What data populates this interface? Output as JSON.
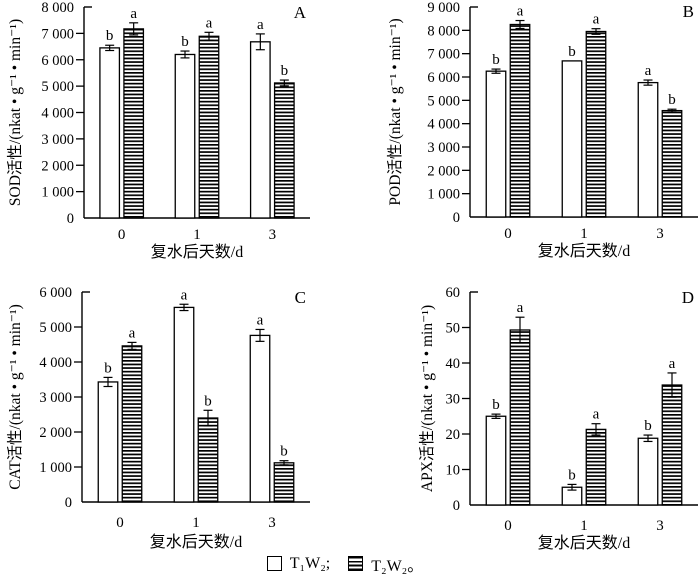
{
  "legend": {
    "series": [
      {
        "label": "T₁W₂;",
        "pattern": "open"
      },
      {
        "label": "T₂W₂。",
        "pattern": "hatched"
      }
    ]
  },
  "chart_data": [
    {
      "type": "bar",
      "panel_label": "A",
      "ylabel": "SOD活性/(nkat • g⁻¹ • min⁻¹)",
      "xlabel": "复水后天数/d",
      "categories": [
        "0",
        "1",
        "3"
      ],
      "ylim": [
        0,
        8000
      ],
      "ytick_step": 1000,
      "grid": false,
      "series": [
        {
          "name": "T₁W₂",
          "pattern": "open",
          "values": [
            6450,
            6200,
            6680
          ],
          "errors": [
            100,
            130,
            300
          ],
          "sig_letters": [
            "b",
            "b",
            "a"
          ]
        },
        {
          "name": "T₂W₂",
          "pattern": "hatched",
          "values": [
            7170,
            6890,
            5120
          ],
          "errors": [
            230,
            150,
            110
          ],
          "sig_letters": [
            "a",
            "a",
            "b"
          ]
        }
      ]
    },
    {
      "type": "bar",
      "panel_label": "B",
      "ylabel": "POD活性/(nkat • g⁻¹ • min⁻¹)",
      "xlabel": "复水后天数/d",
      "categories": [
        "0",
        "1",
        "3"
      ],
      "ylim": [
        0,
        9000
      ],
      "ytick_step": 1000,
      "grid": false,
      "series": [
        {
          "name": "T₁W₂",
          "pattern": "open",
          "values": [
            6250,
            6690,
            5760
          ],
          "errors": [
            90,
            0,
            110
          ],
          "sig_letters": [
            "b",
            "b",
            "a"
          ]
        },
        {
          "name": "T₂W₂",
          "pattern": "hatched",
          "values": [
            8250,
            7950,
            4560
          ],
          "errors": [
            170,
            120,
            60
          ],
          "sig_letters": [
            "a",
            "a",
            "b"
          ]
        }
      ]
    },
    {
      "type": "bar",
      "panel_label": "C",
      "ylabel": "CAT活性/(nkat • g⁻¹ • min⁻¹)",
      "xlabel": "复水后天数/d",
      "categories": [
        "0",
        "1",
        "3"
      ],
      "ylim": [
        0,
        6000
      ],
      "ytick_step": 1000,
      "grid": false,
      "series": [
        {
          "name": "T₁W₂",
          "pattern": "open",
          "values": [
            3430,
            5560,
            4760
          ],
          "errors": [
            130,
            90,
            170
          ],
          "sig_letters": [
            "b",
            "a",
            "a"
          ]
        },
        {
          "name": "T₂W₂",
          "pattern": "hatched",
          "values": [
            4460,
            2400,
            1120
          ],
          "errors": [
            100,
            220,
            60
          ],
          "sig_letters": [
            "a",
            "b",
            "b"
          ]
        }
      ]
    },
    {
      "type": "bar",
      "panel_label": "D",
      "ylabel": "APX活性/(nkat • g⁻¹ • min⁻¹)",
      "xlabel": "复水后天数/d",
      "categories": [
        "0",
        "1",
        "3"
      ],
      "ylim": [
        0,
        60
      ],
      "ytick_step": 10,
      "grid": false,
      "series": [
        {
          "name": "T₁W₂",
          "pattern": "open",
          "values": [
            25,
            5,
            18.8
          ],
          "errors": [
            0.6,
            0.8,
            0.9
          ],
          "sig_letters": [
            "b",
            "b",
            "b"
          ]
        },
        {
          "name": "T₂W₂",
          "pattern": "hatched",
          "values": [
            49.3,
            21.3,
            33.8
          ],
          "errors": [
            3.6,
            1.6,
            3.4
          ],
          "sig_letters": [
            "a",
            "a",
            "a"
          ]
        }
      ]
    }
  ],
  "colors": {
    "ink": "#000000",
    "background": "#ffffff"
  }
}
